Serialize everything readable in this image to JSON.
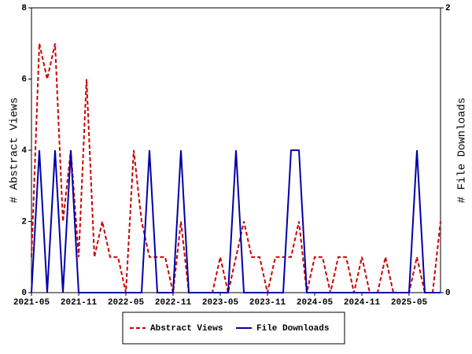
{
  "chart_data": {
    "type": "line",
    "categories": [
      "2021-05",
      null,
      null,
      null,
      null,
      null,
      "2021-11",
      null,
      null,
      null,
      null,
      null,
      "2022-05",
      null,
      null,
      null,
      null,
      null,
      "2022-11",
      null,
      null,
      null,
      null,
      null,
      "2023-05",
      null,
      null,
      null,
      null,
      null,
      "2023-11",
      null,
      null,
      null,
      null,
      null,
      "2024-05",
      null,
      null,
      null,
      null,
      null,
      "2024-11",
      null,
      null,
      null,
      null,
      null,
      "2025-05",
      null,
      null,
      null,
      null
    ],
    "series": [
      {
        "name": "Abstract Views",
        "color": "#cc0000",
        "axis": "y",
        "values": [
          1,
          7,
          6,
          7,
          2,
          4,
          1,
          6,
          1,
          2,
          1,
          1,
          0,
          4,
          2,
          1,
          1,
          1,
          0,
          2,
          0,
          0,
          0,
          0,
          1,
          0,
          1,
          2,
          1,
          1,
          0,
          1,
          1,
          1,
          2,
          0,
          1,
          1,
          0,
          1,
          1,
          0,
          1,
          0,
          0,
          1,
          0,
          0,
          0,
          1,
          0,
          0,
          2
        ]
      },
      {
        "name": "File Downloads",
        "color": "#0000aa",
        "axis": "y2",
        "values": [
          0,
          1,
          0,
          1,
          0,
          1,
          0,
          0,
          0,
          0,
          0,
          0,
          0,
          0,
          0,
          1,
          0,
          0,
          0,
          1,
          0,
          0,
          0,
          0,
          0,
          0,
          1,
          0,
          0,
          0,
          0,
          0,
          0,
          1,
          1,
          0,
          0,
          0,
          0,
          0,
          0,
          0,
          0,
          0,
          0,
          0,
          0,
          0,
          0,
          1,
          0,
          0,
          0
        ]
      }
    ],
    "ylabel": "# Abstract Views",
    "y2label": "# File Downloads",
    "ylim": [
      0,
      8
    ],
    "yticks": [
      0,
      2,
      4,
      6,
      8
    ],
    "y2lim": [
      0,
      2
    ],
    "y2ticks": [
      0,
      2
    ],
    "legend": "bottom"
  }
}
